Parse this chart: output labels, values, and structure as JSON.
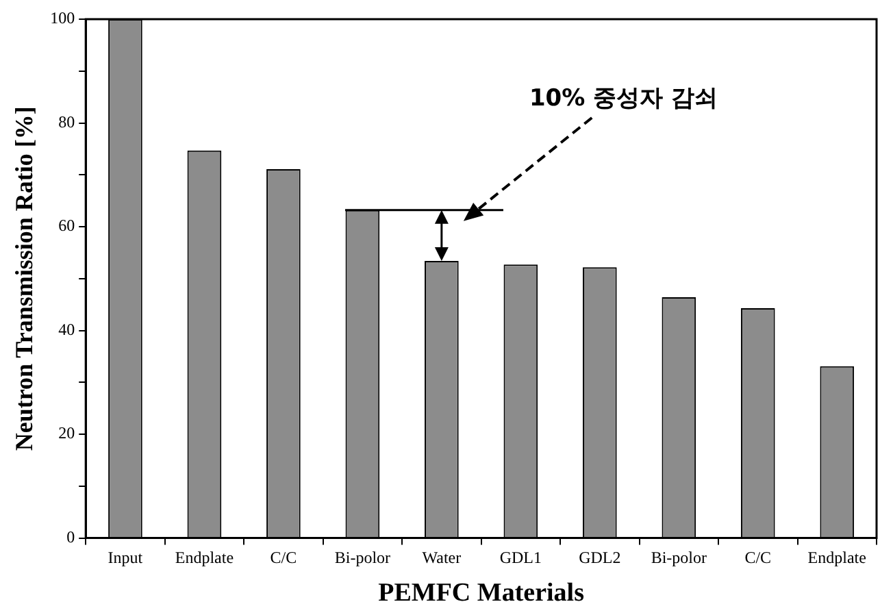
{
  "chart_data": {
    "type": "bar",
    "xlabel": "PEMFC Materials",
    "ylabel": "Neutron Transmission Ratio [%]",
    "categories": [
      "Input",
      "Endplate",
      "C/C",
      "Bi-polor",
      "Water",
      "GDL1",
      "GDL2",
      "Bi-polor",
      "C/C",
      "Endplate"
    ],
    "values": [
      100,
      74.7,
      71.1,
      63.2,
      53.4,
      52.7,
      52.2,
      46.4,
      44.3,
      33.1
    ],
    "color": "#8c8c8c",
    "ylim": [
      0,
      100
    ],
    "yticks": [
      0,
      {
        "value": 10,
        "label": null
      },
      20,
      {
        "value": 30,
        "label": null
      },
      40,
      {
        "value": 50,
        "label": null
      },
      60,
      {
        "value": 70,
        "label": null
      },
      80,
      {
        "value": 90,
        "label": null
      },
      100
    ],
    "annotations": [
      "10% 중성자 감쇠"
    ],
    "grid": false,
    "legend": false
  }
}
